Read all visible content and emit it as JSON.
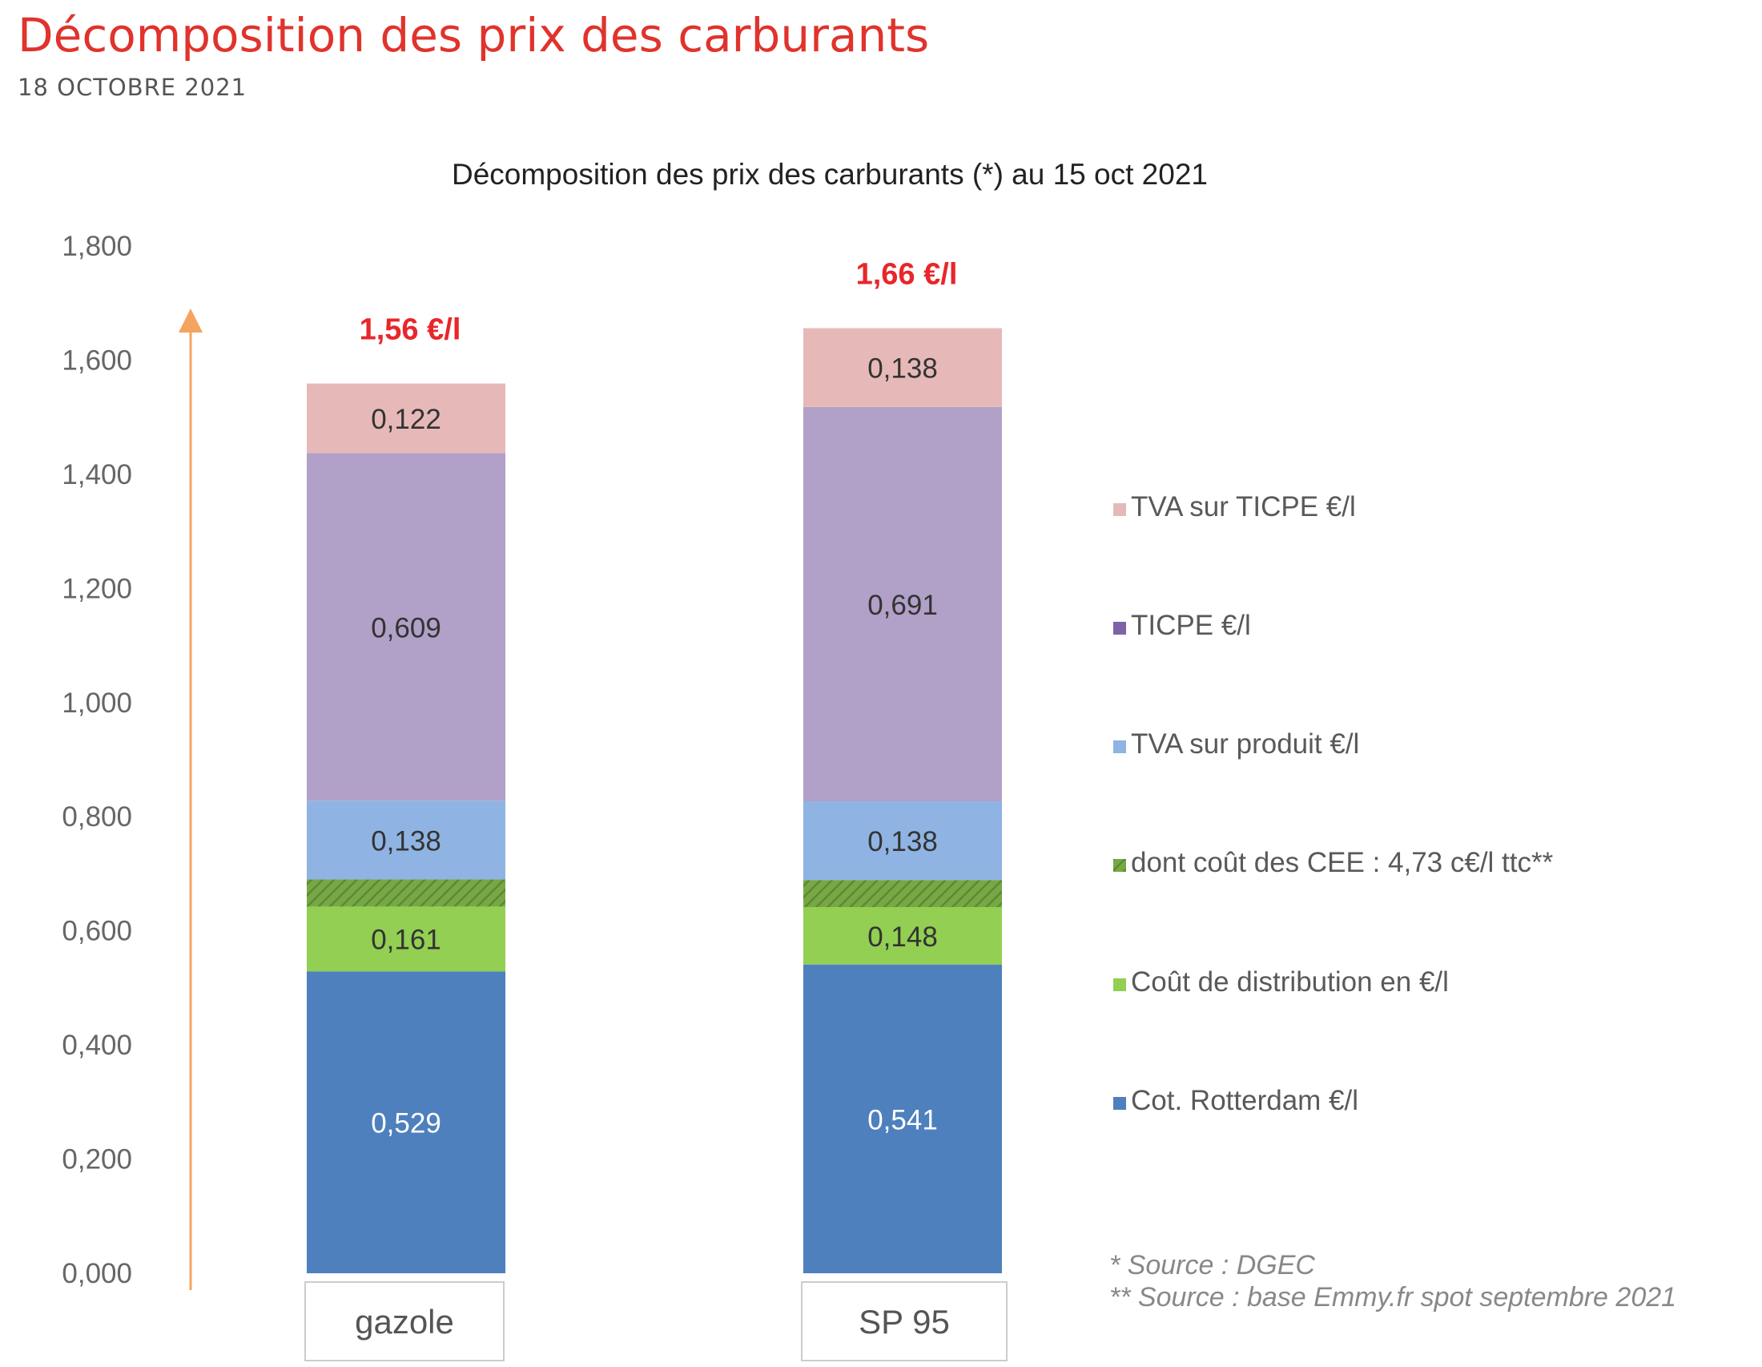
{
  "header": {
    "title": "Décomposition des prix des carburants",
    "date": "18 OCTOBRE 2021"
  },
  "chart_data": {
    "type": "bar",
    "stacked": true,
    "title": "Décomposition des prix des carburants (*) au 15 oct 2021",
    "categories": [
      "gazole",
      "SP 95"
    ],
    "totals": [
      "1,56 €/l",
      "1,66 €/l"
    ],
    "ylim": [
      0,
      1.8
    ],
    "yticks": [
      "0,000",
      "0,200",
      "0,400",
      "0,600",
      "0,800",
      "1,000",
      "1,200",
      "1,400",
      "1,600",
      "1,800"
    ],
    "series": [
      {
        "name": "Cot. Rotterdam €/l",
        "color": "#4e80bd",
        "values": [
          0.529,
          0.541
        ],
        "labels": [
          "0,529",
          "0,541"
        ],
        "label_color": "#ffffff"
      },
      {
        "name": "Coût de distribution en €/l",
        "color": "#92cf52",
        "values": [
          0.161,
          0.148
        ],
        "labels": [
          "0,161",
          "0,148"
        ],
        "label_color": "#333333"
      },
      {
        "name": "TVA sur produit €/l",
        "color": "#8fb4e3",
        "values": [
          0.138,
          0.138
        ],
        "labels": [
          "0,138",
          "0,138"
        ],
        "label_color": "#333333"
      },
      {
        "name": "TICPE €/l",
        "color": "#b1a0c7",
        "values": [
          0.609,
          0.691
        ],
        "labels": [
          "0,609",
          "0,691"
        ],
        "label_color": "#333333"
      },
      {
        "name": "TVA sur TICPE €/l",
        "color": "#e6b9b8",
        "values": [
          0.122,
          0.138
        ],
        "labels": [
          "0,122",
          "0,138"
        ],
        "label_color": "#333333"
      }
    ],
    "hatched_series": {
      "name": "dont coût des CEE : 4,73 c€/l ttc**",
      "color": "#78a846",
      "values": [
        0.0473,
        0.0473
      ]
    },
    "legend_order": [
      {
        "name": "TVA sur TICPE €/l",
        "color": "#e6b9b8",
        "hatched": false
      },
      {
        "name": "TICPE €/l",
        "color": "#7e63a6",
        "hatched": false
      },
      {
        "name": "TVA sur produit €/l",
        "color": "#8fb4e3",
        "hatched": false
      },
      {
        "name": "dont coût des CEE : 4,73 c€/l ttc**",
        "color": "#78a846",
        "hatched": true
      },
      {
        "name": "Coût de distribution en €/l",
        "color": "#92cf52",
        "hatched": false
      },
      {
        "name": "Cot. Rotterdam €/l",
        "color": "#4e80bd",
        "hatched": false
      }
    ],
    "legend_placement": "right",
    "grid": false,
    "notes": [
      "* Source : DGEC",
      "** Source : base Emmy.fr spot septembre 2021"
    ],
    "total_color": "#e8262b",
    "arrow_color": "#f4a460"
  }
}
